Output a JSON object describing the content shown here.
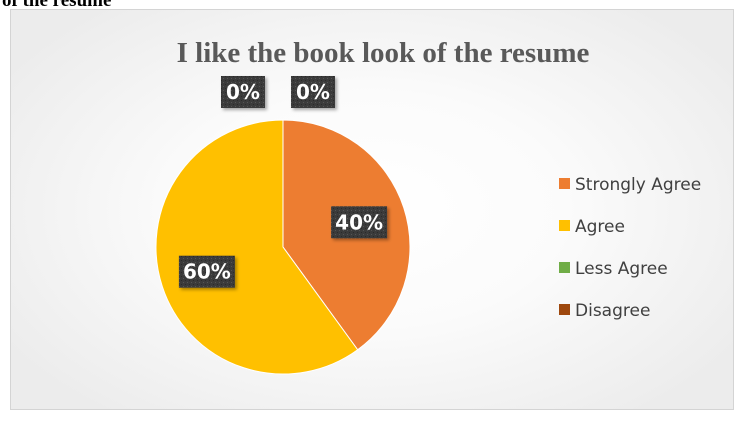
{
  "document": {
    "heading_fragment": "of the resume"
  },
  "chart_data": {
    "type": "pie",
    "title": "I like the book look of the resume",
    "categories": [
      "Strongly Agree",
      "Agree",
      "Less Agree",
      "Disagree"
    ],
    "values": [
      40,
      60,
      0,
      0
    ],
    "data_labels": [
      "40%",
      "60%",
      "0%",
      "0%"
    ],
    "colors": [
      "#ED7D31",
      "#FFC000",
      "#70AD47",
      "#9E480E"
    ],
    "legend_position": "right"
  }
}
